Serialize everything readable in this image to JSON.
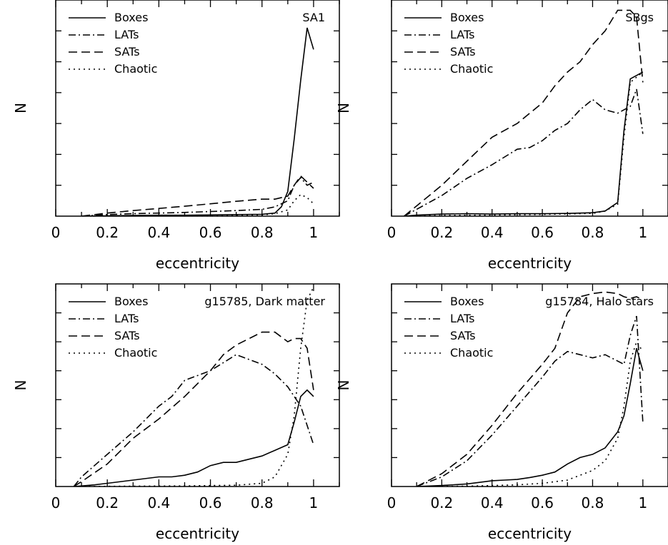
{
  "chart_data": [
    {
      "type": "line",
      "title": "SA1",
      "xlabel": "eccentricity",
      "ylabel": "N",
      "xlim": [
        0,
        1.1
      ],
      "ylim": [
        0,
        7
      ],
      "x_ticks": [
        "0",
        "0.2",
        "0.4",
        "0.6",
        "0.8",
        "1"
      ],
      "y_tick_labels_shown": false,
      "legend_position": "top-left",
      "series": [
        {
          "name": "Boxes",
          "style": "solid",
          "x": [
            0.1,
            0.2,
            0.3,
            0.4,
            0.5,
            0.6,
            0.7,
            0.8,
            0.85,
            0.875,
            0.9,
            0.925,
            0.95,
            0.975,
            1.0
          ],
          "y": [
            0.0,
            0.01,
            0.02,
            0.03,
            0.03,
            0.04,
            0.05,
            0.06,
            0.1,
            0.3,
            0.8,
            2.5,
            4.4,
            6.1,
            5.4
          ]
        },
        {
          "name": "LATs",
          "style": "dashdot",
          "x": [
            0.1,
            0.2,
            0.3,
            0.4,
            0.5,
            0.6,
            0.7,
            0.8,
            0.85,
            0.9,
            0.925,
            0.95,
            0.975,
            1.0
          ],
          "y": [
            0.0,
            0.05,
            0.08,
            0.1,
            0.12,
            0.15,
            0.18,
            0.22,
            0.3,
            0.5,
            1.0,
            1.25,
            1.0,
            1.1
          ]
        },
        {
          "name": "SATs",
          "style": "dashed",
          "x": [
            0.1,
            0.2,
            0.3,
            0.4,
            0.5,
            0.6,
            0.7,
            0.8,
            0.85,
            0.9,
            0.925,
            0.95,
            0.975,
            1.0
          ],
          "y": [
            0.0,
            0.1,
            0.18,
            0.25,
            0.32,
            0.4,
            0.48,
            0.55,
            0.55,
            0.65,
            1.0,
            1.3,
            1.1,
            0.9
          ]
        },
        {
          "name": "Chaotic",
          "style": "dotted",
          "x": [
            0.1,
            0.3,
            0.5,
            0.7,
            0.8,
            0.85,
            0.9,
            0.925,
            0.95,
            0.975,
            1.0
          ],
          "y": [
            0.0,
            0.01,
            0.02,
            0.03,
            0.04,
            0.08,
            0.2,
            0.5,
            0.7,
            0.6,
            0.4
          ]
        }
      ]
    },
    {
      "type": "line",
      "title": "SBgs",
      "xlabel": "eccentricity",
      "ylabel": "N",
      "xlim": [
        0,
        1.1
      ],
      "ylim": [
        0,
        6.3
      ],
      "x_ticks": [
        "0",
        "0.2",
        "0.4",
        "0.6",
        "0.8",
        "1"
      ],
      "y_tick_labels_shown": false,
      "legend_position": "top-left",
      "series": [
        {
          "name": "Boxes",
          "style": "solid",
          "x": [
            0.05,
            0.1,
            0.2,
            0.3,
            0.4,
            0.5,
            0.6,
            0.7,
            0.8,
            0.85,
            0.9,
            0.925,
            0.95,
            1.0
          ],
          "y": [
            0.0,
            0.03,
            0.06,
            0.07,
            0.06,
            0.07,
            0.07,
            0.08,
            0.1,
            0.15,
            0.4,
            2.5,
            4.0,
            4.2
          ]
        },
        {
          "name": "LATs",
          "style": "dashdot",
          "x": [
            0.05,
            0.1,
            0.2,
            0.3,
            0.4,
            0.5,
            0.55,
            0.6,
            0.65,
            0.7,
            0.75,
            0.8,
            0.85,
            0.9,
            0.95,
            0.975,
            1.0
          ],
          "y": [
            0.0,
            0.2,
            0.6,
            1.1,
            1.5,
            1.95,
            2.0,
            2.2,
            2.5,
            2.7,
            3.1,
            3.4,
            3.1,
            3.0,
            3.2,
            3.7,
            2.4
          ]
        },
        {
          "name": "SATs",
          "style": "dashed",
          "x": [
            0.05,
            0.1,
            0.2,
            0.3,
            0.4,
            0.5,
            0.6,
            0.65,
            0.7,
            0.75,
            0.8,
            0.85,
            0.9,
            0.95,
            0.975,
            1.0
          ],
          "y": [
            0.0,
            0.3,
            0.9,
            1.6,
            2.3,
            2.7,
            3.3,
            3.8,
            4.2,
            4.5,
            5.0,
            5.4,
            6.0,
            6.0,
            5.8,
            3.9
          ]
        },
        {
          "name": "Chaotic",
          "style": "dotted",
          "x": [
            0.05,
            0.2,
            0.4,
            0.6,
            0.8,
            0.85,
            0.9,
            0.925,
            0.95,
            1.0
          ],
          "y": [
            0.0,
            0.02,
            0.03,
            0.05,
            0.08,
            0.15,
            0.35,
            2.3,
            3.9,
            4.2
          ]
        }
      ]
    },
    {
      "type": "line",
      "title": "g15785, Dark matter",
      "xlabel": "eccentricity",
      "ylabel": "N",
      "xlim": [
        0,
        1.1
      ],
      "ylim": [
        0,
        6.3
      ],
      "x_ticks": [
        "0",
        "0.2",
        "0.4",
        "0.6",
        "0.8",
        "1"
      ],
      "y_tick_labels_shown": false,
      "legend_position": "top-left",
      "series": [
        {
          "name": "Boxes",
          "style": "solid",
          "x": [
            0.07,
            0.15,
            0.2,
            0.3,
            0.4,
            0.45,
            0.5,
            0.55,
            0.6,
            0.65,
            0.7,
            0.8,
            0.9,
            0.925,
            0.95,
            0.975,
            1.0
          ],
          "y": [
            0.0,
            0.05,
            0.1,
            0.2,
            0.3,
            0.3,
            0.35,
            0.45,
            0.65,
            0.75,
            0.75,
            0.95,
            1.3,
            2.0,
            2.8,
            3.0,
            2.8
          ]
        },
        {
          "name": "LATs",
          "style": "dashdot",
          "x": [
            0.07,
            0.1,
            0.2,
            0.3,
            0.4,
            0.45,
            0.5,
            0.6,
            0.7,
            0.8,
            0.85,
            0.9,
            0.95,
            1.0
          ],
          "y": [
            0.0,
            0.3,
            1.0,
            1.7,
            2.5,
            2.8,
            3.3,
            3.6,
            4.1,
            3.8,
            3.5,
            3.1,
            2.5,
            1.3
          ]
        },
        {
          "name": "SATs",
          "style": "dashed",
          "x": [
            0.07,
            0.1,
            0.2,
            0.3,
            0.4,
            0.5,
            0.6,
            0.65,
            0.7,
            0.75,
            0.8,
            0.85,
            0.9,
            0.925,
            0.95,
            0.975,
            1.0
          ],
          "y": [
            0.0,
            0.15,
            0.7,
            1.5,
            2.1,
            2.8,
            3.6,
            4.1,
            4.4,
            4.6,
            4.8,
            4.8,
            4.5,
            4.6,
            4.6,
            4.3,
            3.0
          ]
        },
        {
          "name": "Chaotic",
          "style": "dotted",
          "x": [
            0.07,
            0.3,
            0.5,
            0.7,
            0.8,
            0.85,
            0.9,
            0.925,
            0.95,
            0.975,
            1.0
          ],
          "y": [
            0.0,
            0.01,
            0.02,
            0.04,
            0.1,
            0.3,
            1.0,
            2.2,
            4.3,
            5.8,
            6.2
          ]
        }
      ]
    },
    {
      "type": "line",
      "title": "g15784, Halo stars",
      "xlabel": "eccentricity",
      "ylabel": "N",
      "xlim": [
        0,
        1.1
      ],
      "ylim": [
        0,
        6.3
      ],
      "x_ticks": [
        "0",
        "0.2",
        "0.4",
        "0.6",
        "0.8",
        "1"
      ],
      "y_tick_labels_shown": false,
      "legend_position": "top-left",
      "series": [
        {
          "name": "Boxes",
          "style": "solid",
          "x": [
            0.1,
            0.2,
            0.3,
            0.4,
            0.45,
            0.5,
            0.55,
            0.6,
            0.65,
            0.7,
            0.75,
            0.8,
            0.85,
            0.9,
            0.925,
            0.95,
            0.975,
            1.0
          ],
          "y": [
            0.0,
            0.03,
            0.08,
            0.18,
            0.2,
            0.22,
            0.28,
            0.35,
            0.45,
            0.7,
            0.9,
            1.0,
            1.2,
            1.7,
            2.2,
            3.2,
            4.3,
            3.6
          ]
        },
        {
          "name": "LATs",
          "style": "dashdot",
          "x": [
            0.1,
            0.2,
            0.3,
            0.4,
            0.5,
            0.6,
            0.65,
            0.7,
            0.75,
            0.8,
            0.85,
            0.9,
            0.925,
            0.95,
            0.975,
            1.0
          ],
          "y": [
            0.0,
            0.3,
            0.8,
            1.6,
            2.5,
            3.4,
            3.9,
            4.2,
            4.1,
            4.0,
            4.1,
            3.9,
            3.8,
            4.7,
            5.3,
            2.0
          ]
        },
        {
          "name": "SATs",
          "style": "dashed",
          "x": [
            0.1,
            0.2,
            0.3,
            0.4,
            0.5,
            0.6,
            0.65,
            0.7,
            0.75,
            0.8,
            0.85,
            0.9,
            0.925,
            0.95,
            0.975,
            1.0
          ],
          "y": [
            0.0,
            0.4,
            1.0,
            1.9,
            2.9,
            3.8,
            4.3,
            5.4,
            5.9,
            6.0,
            6.05,
            6.0,
            5.9,
            5.85,
            5.9,
            5.8
          ]
        },
        {
          "name": "Chaotic",
          "style": "dotted",
          "x": [
            0.1,
            0.3,
            0.5,
            0.6,
            0.7,
            0.75,
            0.8,
            0.85,
            0.9,
            0.925,
            0.95,
            0.975,
            1.0
          ],
          "y": [
            0.0,
            0.01,
            0.05,
            0.1,
            0.2,
            0.35,
            0.5,
            0.8,
            1.5,
            2.5,
            3.9,
            4.5,
            4.2
          ]
        }
      ]
    }
  ]
}
